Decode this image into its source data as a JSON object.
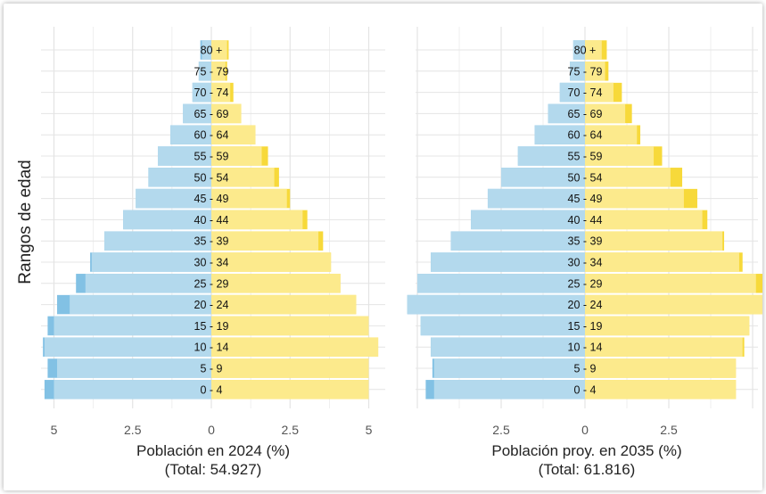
{
  "y_axis_label": "Rangos de edad",
  "colors": {
    "male": "#b3d9ed",
    "male_strong": "#82c1e4",
    "female": "#fcea8c",
    "female_strong": "#f7d93a",
    "grid": "#e4e4e4"
  },
  "chart_data": [
    {
      "type": "bar",
      "subtype": "population-pyramid",
      "title": "",
      "xlabel": "Población en 2024 (%)",
      "xlabel_total": "(Total: 54.927)",
      "ylabel": "Rangos de edad",
      "categories": [
        "0 - 4",
        "5 - 9",
        "10 - 14",
        "15 - 19",
        "20 - 24",
        "25 - 29",
        "30 - 34",
        "35 - 39",
        "40 - 44",
        "45 - 49",
        "50 - 54",
        "55 - 59",
        "60 - 64",
        "65 - 69",
        "70 - 74",
        "75 - 79",
        "80 +"
      ],
      "xlim": [
        -5.3,
        5.3
      ],
      "xticks": [
        -5,
        -2.5,
        0,
        2.5,
        5
      ],
      "xtick_labels": [
        "5",
        "2.5",
        "0",
        "2.5",
        "5"
      ],
      "series": [
        {
          "side": "left",
          "values": [
            5.0,
            4.9,
            5.3,
            5.0,
            4.5,
            4.0,
            3.8,
            3.4,
            2.8,
            2.4,
            2.0,
            1.7,
            1.3,
            0.9,
            0.6,
            0.4,
            0.3
          ]
        },
        {
          "side": "left",
          "strong": true,
          "values": [
            5.3,
            5.2,
            5.35,
            5.2,
            4.9,
            4.3,
            3.85,
            3.4,
            2.8,
            2.4,
            2.0,
            1.7,
            1.3,
            0.9,
            0.6,
            0.4,
            0.35
          ]
        },
        {
          "side": "right",
          "values": [
            5.0,
            5.0,
            5.3,
            5.0,
            4.6,
            4.1,
            3.8,
            3.4,
            2.9,
            2.4,
            2.0,
            1.6,
            1.4,
            0.95,
            0.6,
            0.45,
            0.5
          ]
        },
        {
          "side": "right",
          "strong": true,
          "values": [
            5.0,
            5.0,
            5.3,
            5.0,
            4.6,
            4.1,
            3.8,
            3.55,
            3.05,
            2.5,
            2.15,
            1.8,
            1.4,
            0.95,
            0.7,
            0.5,
            0.55
          ]
        }
      ]
    },
    {
      "type": "bar",
      "subtype": "population-pyramid",
      "title": "",
      "xlabel": "Población proy. en 2035 (%)",
      "xlabel_total": "(Total: 61.816)",
      "ylabel": "",
      "categories": [
        "0 - 4",
        "5 - 9",
        "10 - 14",
        "15 - 19",
        "20 - 24",
        "25 - 29",
        "30 - 34",
        "35 - 39",
        "40 - 44",
        "45 - 49",
        "50 - 54",
        "55 - 59",
        "60 - 64",
        "65 - 69",
        "70 - 74",
        "75 - 79",
        "80 +"
      ],
      "xlim": [
        -5.3,
        5.3
      ],
      "xticks": [
        -2.5,
        0,
        2.5
      ],
      "xtick_labels": [
        "2.5",
        "0",
        "2.5"
      ],
      "series": [
        {
          "side": "left",
          "values": [
            4.5,
            4.5,
            4.6,
            4.9,
            5.3,
            5.0,
            4.6,
            4.0,
            3.4,
            2.9,
            2.5,
            2.0,
            1.5,
            1.1,
            0.75,
            0.45,
            0.35
          ]
        },
        {
          "side": "left",
          "strong": true,
          "values": [
            4.75,
            4.55,
            4.6,
            4.9,
            5.3,
            5.0,
            4.6,
            4.0,
            3.4,
            2.9,
            2.5,
            2.0,
            1.5,
            1.1,
            0.75,
            0.45,
            0.35
          ]
        },
        {
          "side": "right",
          "values": [
            4.5,
            4.5,
            4.7,
            4.9,
            5.3,
            5.1,
            4.6,
            4.1,
            3.5,
            2.95,
            2.55,
            2.05,
            1.55,
            1.2,
            0.85,
            0.6,
            0.5
          ]
        },
        {
          "side": "right",
          "strong": true,
          "values": [
            4.5,
            4.5,
            4.75,
            4.9,
            5.3,
            5.3,
            4.7,
            4.15,
            3.65,
            3.35,
            2.9,
            2.3,
            1.65,
            1.4,
            1.1,
            0.7,
            0.65
          ]
        }
      ]
    }
  ]
}
